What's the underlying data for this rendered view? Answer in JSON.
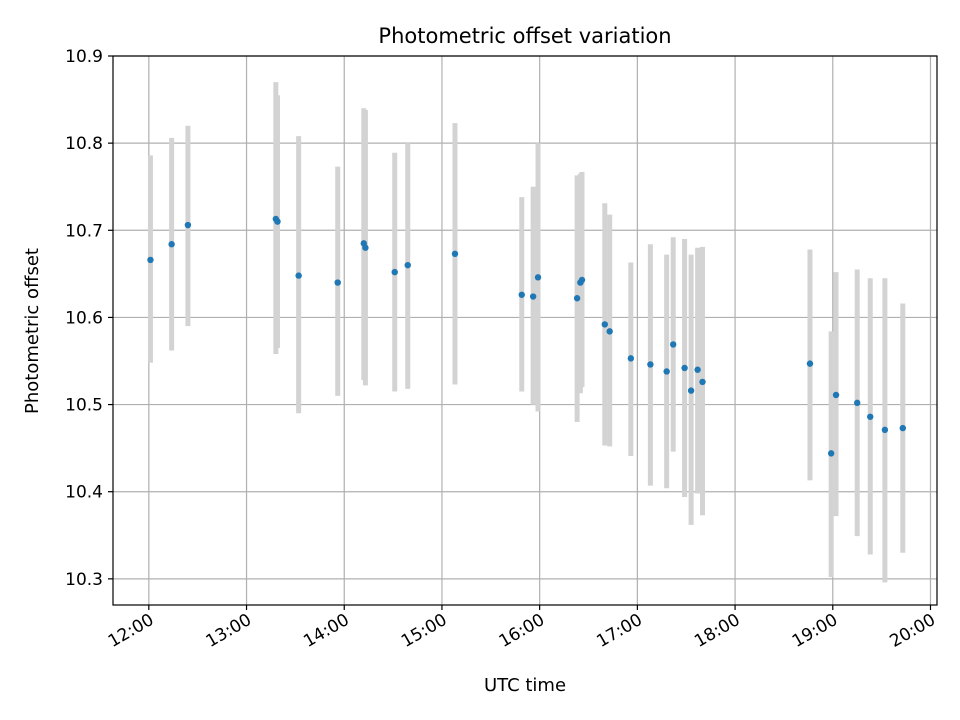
{
  "chart_data": {
    "type": "scatter",
    "title": "Photometric offset variation",
    "xlabel": "UTC time",
    "ylabel": "Photometric offset",
    "xlim": [
      "11:38",
      "20:04"
    ],
    "ylim": [
      10.27,
      10.9
    ],
    "x_ticks": [
      "12:00",
      "13:00",
      "14:00",
      "15:00",
      "16:00",
      "17:00",
      "18:00",
      "19:00",
      "20:00"
    ],
    "y_ticks": [
      10.3,
      10.4,
      10.5,
      10.6,
      10.7,
      10.8,
      10.9
    ],
    "y_tick_labels": [
      "10.3",
      "10.4",
      "10.5",
      "10.6",
      "10.7",
      "10.8",
      "10.9"
    ],
    "grid": true,
    "colors": {
      "point": "#1f77b4",
      "errorbar": "#d3d3d3",
      "grid": "#b0b0b0",
      "axes": "#000000"
    },
    "series": [
      {
        "points": [
          {
            "t": "12:01",
            "y": 10.666,
            "lo": 10.548,
            "hi": 10.786
          },
          {
            "t": "12:14",
            "y": 10.684,
            "lo": 10.562,
            "hi": 10.806
          },
          {
            "t": "12:24",
            "y": 10.706,
            "lo": 10.59,
            "hi": 10.82
          },
          {
            "t": "13:18",
            "y": 10.713,
            "lo": 10.558,
            "hi": 10.87
          },
          {
            "t": "13:19",
            "y": 10.71,
            "lo": 10.565,
            "hi": 10.855
          },
          {
            "t": "13:32",
            "y": 10.648,
            "lo": 10.49,
            "hi": 10.808
          },
          {
            "t": "13:56",
            "y": 10.64,
            "lo": 10.51,
            "hi": 10.773
          },
          {
            "t": "14:12",
            "y": 10.685,
            "lo": 10.528,
            "hi": 10.84
          },
          {
            "t": "14:13",
            "y": 10.68,
            "lo": 10.522,
            "hi": 10.838
          },
          {
            "t": "14:31",
            "y": 10.652,
            "lo": 10.515,
            "hi": 10.789
          },
          {
            "t": "14:39",
            "y": 10.66,
            "lo": 10.518,
            "hi": 10.8
          },
          {
            "t": "15:08",
            "y": 10.673,
            "lo": 10.523,
            "hi": 10.823
          },
          {
            "t": "15:49",
            "y": 10.626,
            "lo": 10.515,
            "hi": 10.738
          },
          {
            "t": "15:56",
            "y": 10.624,
            "lo": 10.5,
            "hi": 10.75
          },
          {
            "t": "15:59",
            "y": 10.646,
            "lo": 10.492,
            "hi": 10.8
          },
          {
            "t": "16:23",
            "y": 10.622,
            "lo": 10.48,
            "hi": 10.763
          },
          {
            "t": "16:25",
            "y": 10.64,
            "lo": 10.513,
            "hi": 10.765
          },
          {
            "t": "16:26",
            "y": 10.643,
            "lo": 10.52,
            "hi": 10.767
          },
          {
            "t": "16:40",
            "y": 10.592,
            "lo": 10.453,
            "hi": 10.731
          },
          {
            "t": "16:43",
            "y": 10.584,
            "lo": 10.452,
            "hi": 10.718
          },
          {
            "t": "16:56",
            "y": 10.553,
            "lo": 10.441,
            "hi": 10.663
          },
          {
            "t": "17:08",
            "y": 10.546,
            "lo": 10.407,
            "hi": 10.684
          },
          {
            "t": "17:18",
            "y": 10.538,
            "lo": 10.404,
            "hi": 10.672
          },
          {
            "t": "17:22",
            "y": 10.569,
            "lo": 10.446,
            "hi": 10.692
          },
          {
            "t": "17:29",
            "y": 10.542,
            "lo": 10.394,
            "hi": 10.69
          },
          {
            "t": "17:33",
            "y": 10.516,
            "lo": 10.362,
            "hi": 10.672
          },
          {
            "t": "17:37",
            "y": 10.54,
            "lo": 10.398,
            "hi": 10.68
          },
          {
            "t": "17:40",
            "y": 10.526,
            "lo": 10.373,
            "hi": 10.681
          },
          {
            "t": "18:46",
            "y": 10.547,
            "lo": 10.413,
            "hi": 10.678
          },
          {
            "t": "18:59",
            "y": 10.444,
            "lo": 10.302,
            "hi": 10.584
          },
          {
            "t": "19:02",
            "y": 10.511,
            "lo": 10.372,
            "hi": 10.652
          },
          {
            "t": "19:15",
            "y": 10.502,
            "lo": 10.349,
            "hi": 10.655
          },
          {
            "t": "19:23",
            "y": 10.486,
            "lo": 10.328,
            "hi": 10.645
          },
          {
            "t": "19:32",
            "y": 10.471,
            "lo": 10.296,
            "hi": 10.645
          },
          {
            "t": "19:43",
            "y": 10.473,
            "lo": 10.33,
            "hi": 10.616
          }
        ]
      }
    ]
  }
}
